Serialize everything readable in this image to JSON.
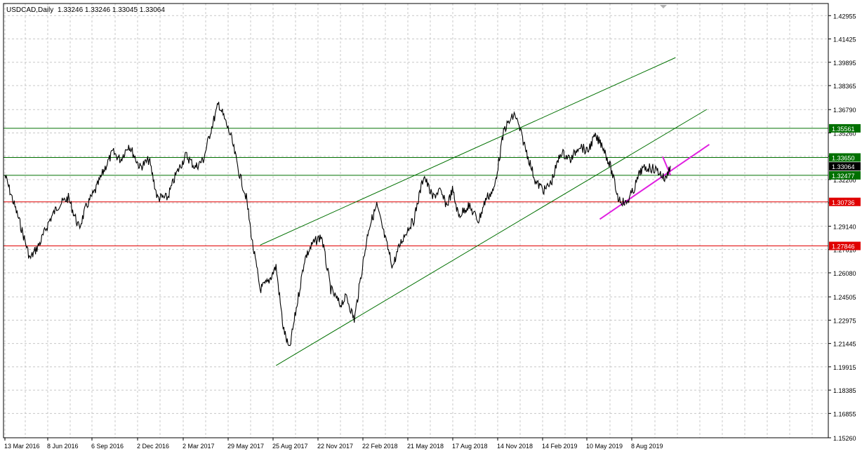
{
  "window": {
    "symbol_label": "USDCAD,Daily",
    "ohlc_label": "1.33246 1.33246 1.33045 1.33064"
  },
  "colors": {
    "background": "#ffffff",
    "grid": "#c8c8c8",
    "price": "#000000",
    "channel": "#007000",
    "horizontal_green": "#007000",
    "horizontal_red": "#e00000",
    "trend_magenta": "#e020e0",
    "axis_text": "#000000"
  },
  "chart_data": {
    "type": "line",
    "symbol": "USDCAD",
    "timeframe": "Daily",
    "ylim": [
      1.1526,
      1.4375
    ],
    "y_ticks": [
      "1.42955",
      "1.41425",
      "1.39895",
      "1.38365",
      "1.36790",
      "1.35260",
      "1.33730",
      "1.32200",
      "1.30670",
      "1.29140",
      "1.27610",
      "1.26080",
      "1.24505",
      "1.22975",
      "1.21445",
      "1.19915",
      "1.18385",
      "1.16855",
      "1.15260"
    ],
    "x_ticks": [
      "13 Mar 2016",
      "8 Jun 2016",
      "6 Sep 2016",
      "2 Dec 2016",
      "2 Mar 2017",
      "29 May 2017",
      "25 Aug 2017",
      "22 Nov 2017",
      "22 Feb 2018",
      "21 May 2018",
      "17 Aug 2018",
      "14 Nov 2018",
      "14 Feb 2019",
      "10 May 2019",
      "8 Aug 2019"
    ],
    "series": [
      {
        "x": [
          "2016-03-13",
          "2016-04-10",
          "2016-05-01",
          "2016-05-20",
          "2016-06-08",
          "2016-06-25",
          "2016-07-15",
          "2016-08-05",
          "2016-08-20",
          "2016-09-06",
          "2016-09-25",
          "2016-10-10",
          "2016-10-25",
          "2016-11-10",
          "2016-12-02",
          "2016-12-20",
          "2017-01-05",
          "2017-01-25",
          "2017-02-10",
          "2017-03-02",
          "2017-03-20",
          "2017-04-05",
          "2017-04-20",
          "2017-05-05",
          "2017-05-29",
          "2017-06-15",
          "2017-06-28",
          "2017-07-10",
          "2017-07-25",
          "2017-08-10",
          "2017-08-25",
          "2017-09-08",
          "2017-09-20",
          "2017-10-05",
          "2017-10-20",
          "2017-11-05",
          "2017-11-22",
          "2017-12-10",
          "2017-12-28",
          "2018-01-10",
          "2018-01-25",
          "2018-02-10",
          "2018-02-22",
          "2018-03-10",
          "2018-03-25",
          "2018-04-10",
          "2018-04-25",
          "2018-05-10",
          "2018-05-21",
          "2018-06-10",
          "2018-06-27",
          "2018-07-10",
          "2018-07-25",
          "2018-08-05",
          "2018-08-17",
          "2018-09-05",
          "2018-09-25",
          "2018-10-10",
          "2018-10-25",
          "2018-11-14",
          "2018-12-05",
          "2018-12-28",
          "2019-01-15",
          "2019-02-01",
          "2019-02-14",
          "2019-03-05",
          "2019-03-25",
          "2019-04-10",
          "2019-04-25",
          "2019-05-10",
          "2019-05-25",
          "2019-06-10",
          "2019-06-25",
          "2019-07-10",
          "2019-07-25",
          "2019-08-08",
          "2019-08-25",
          "2019-09-10",
          "2019-09-25",
          "2019-10-05"
        ],
        "values": [
          1.325,
          1.295,
          1.27,
          1.28,
          1.295,
          1.305,
          1.31,
          1.29,
          1.305,
          1.315,
          1.33,
          1.34,
          1.335,
          1.345,
          1.33,
          1.335,
          1.31,
          1.31,
          1.325,
          1.338,
          1.33,
          1.335,
          1.355,
          1.372,
          1.35,
          1.325,
          1.31,
          1.28,
          1.25,
          1.255,
          1.265,
          1.225,
          1.21,
          1.24,
          1.27,
          1.28,
          1.285,
          1.25,
          1.24,
          1.245,
          1.23,
          1.265,
          1.29,
          1.305,
          1.285,
          1.265,
          1.28,
          1.29,
          1.295,
          1.325,
          1.31,
          1.315,
          1.305,
          1.315,
          1.298,
          1.305,
          1.295,
          1.31,
          1.315,
          1.355,
          1.365,
          1.34,
          1.32,
          1.315,
          1.32,
          1.34,
          1.335,
          1.345,
          1.34,
          1.35,
          1.345,
          1.33,
          1.31,
          1.306,
          1.315,
          1.328,
          1.33,
          1.328,
          1.322,
          1.331
        ]
      }
    ],
    "horizontal_levels": [
      {
        "price": "1.35561",
        "value": 1.35561,
        "kind": "green"
      },
      {
        "price": "1.33650",
        "value": 1.3365,
        "kind": "green"
      },
      {
        "price": "1.32477",
        "value": 1.32477,
        "kind": "green"
      },
      {
        "price": "1.30736",
        "value": 1.30736,
        "kind": "red"
      },
      {
        "price": "1.27846",
        "value": 1.27846,
        "kind": "red"
      }
    ],
    "current_price": {
      "price": "1.33064",
      "value": 1.33064
    },
    "trendlines": [
      {
        "kind": "channel-lower",
        "x1": "2017-08-25",
        "y1": 1.2,
        "x2": "2019-12-15",
        "y2": 1.368
      },
      {
        "kind": "channel-upper",
        "x1": "2017-07-25",
        "y1": 1.279,
        "x2": "2019-10-15",
        "y2": 1.402
      },
      {
        "kind": "support",
        "x1": "2019-05-20",
        "y1": 1.296,
        "x2": "2019-12-20",
        "y2": 1.345
      },
      {
        "kind": "marker",
        "x1": "2019-09-20",
        "y1": 1.337,
        "x2": "2019-10-05",
        "y2": 1.325
      }
    ]
  }
}
